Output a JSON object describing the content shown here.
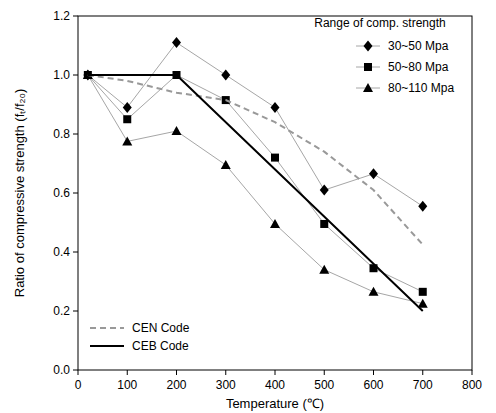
{
  "chart_data": {
    "type": "line",
    "x_label": "Temperature (℃)",
    "y_label": "Ratio of compressive strength (fₜ/f₂₀)",
    "legend_title": "Range of comp. strength",
    "xlim": [
      0,
      800
    ],
    "xticks": [
      0,
      100,
      200,
      300,
      400,
      500,
      600,
      700,
      800
    ],
    "ylim": [
      0,
      1.2
    ],
    "yticks": [
      {
        "value": 0,
        "label": "0.0"
      },
      0.2,
      0.4,
      0.6,
      0.8,
      {
        "value": 1,
        "label": "1.0"
      },
      1.2
    ],
    "grid": false,
    "legend": "upper right",
    "series": [
      {
        "name": "30~50 Mpa",
        "color": "#000000",
        "marker": "diamond",
        "line_style": "solid",
        "x": [
          20,
          100,
          200,
          300,
          400,
          500,
          600,
          700
        ],
        "values": [
          1.0,
          0.89,
          1.11,
          1.0,
          0.89,
          0.61,
          0.665,
          0.555
        ]
      },
      {
        "name": "50~80 Mpa",
        "color": "#000000",
        "marker": "square",
        "line_style": "solid",
        "x": [
          20,
          100,
          200,
          300,
          400,
          500,
          600,
          700
        ],
        "values": [
          1.0,
          0.85,
          1.0,
          0.915,
          0.72,
          0.495,
          0.345,
          0.265
        ]
      },
      {
        "name": "80~110 Mpa",
        "color": "#000000",
        "marker": "triangle",
        "line_style": "solid",
        "x": [
          20,
          100,
          200,
          300,
          400,
          500,
          600,
          700
        ],
        "values": [
          1.0,
          0.775,
          0.81,
          0.695,
          0.495,
          0.34,
          0.265,
          0.225
        ]
      },
      {
        "name": "CEN Code",
        "color": "#999999",
        "marker": "none",
        "line_style": "dashed",
        "x": [
          20,
          100,
          200,
          300,
          400,
          500,
          600,
          700
        ],
        "values": [
          1.0,
          0.98,
          0.94,
          0.915,
          0.84,
          0.74,
          0.61,
          0.425
        ]
      },
      {
        "name": "CEB Code",
        "color": "#000000",
        "marker": "none",
        "line_style": "solid",
        "x": [
          20,
          200,
          700
        ],
        "values": [
          1.0,
          1.0,
          0.2
        ]
      }
    ]
  }
}
